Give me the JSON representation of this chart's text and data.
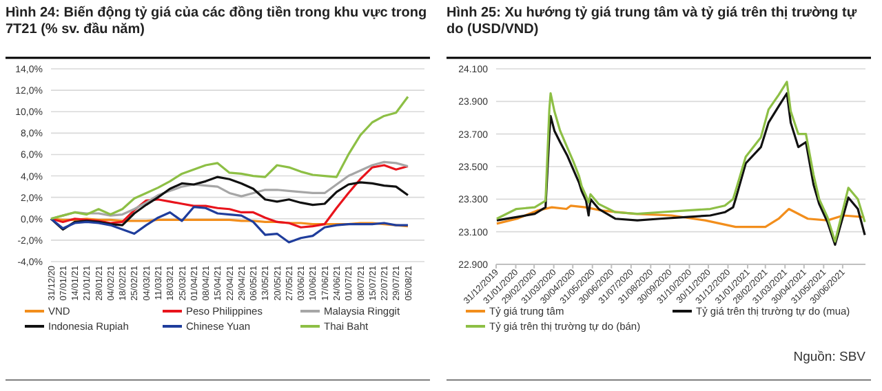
{
  "chart_data": [
    {
      "type": "line",
      "title": "Hình 24: Biến động tỷ giá của các đồng tiền trong khu vực trong 7T21 (% sv. đầu năm)",
      "categories": [
        "31/12/20",
        "07/01/21",
        "14/01/21",
        "21/01/21",
        "28/01/21",
        "04/02/21",
        "18/02/21",
        "25/02/21",
        "04/03/21",
        "11/03/21",
        "18/03/21",
        "25/03/21",
        "01/04/21",
        "08/04/21",
        "15/04/21",
        "22/04/21",
        "29/04/21",
        "06/05/21",
        "13/05/21",
        "20/05/21",
        "27/05/21",
        "03/06/21",
        "10/06/21",
        "17/06/21",
        "24/06/21",
        "01/07/21",
        "08/07/21",
        "15/07/21",
        "22/07/21",
        "29/07/21",
        "05/08/21"
      ],
      "series": [
        {
          "name": "VND",
          "color": "#f28e1c",
          "values": [
            0,
            -0.1,
            -0.1,
            0,
            -0.1,
            -0.1,
            -0.2,
            -0.2,
            -0.2,
            -0.1,
            -0.1,
            -0.1,
            -0.1,
            -0.1,
            -0.1,
            -0.1,
            -0.2,
            -0.2,
            -0.3,
            -0.3,
            -0.4,
            -0.4,
            -0.5,
            -0.5,
            -0.5,
            -0.5,
            -0.4,
            -0.4,
            -0.5,
            -0.6,
            -0.7
          ]
        },
        {
          "name": "Peso Philippines",
          "color": "#e8141c",
          "values": [
            0,
            -0.3,
            0,
            -0.1,
            -0.2,
            -0.4,
            -0.3,
            0.8,
            1.7,
            1.8,
            1.6,
            1.4,
            1.2,
            1.2,
            1.0,
            0.9,
            0.6,
            0.6,
            0.1,
            -0.3,
            -0.4,
            -0.8,
            -0.7,
            -0.5,
            1.0,
            2.4,
            3.7,
            4.8,
            5.0,
            4.6,
            4.9
          ]
        },
        {
          "name": "Malaysia Ringgit",
          "color": "#a6a6a6",
          "values": [
            0,
            0.3,
            0.6,
            0.5,
            0.5,
            0.3,
            0.4,
            0.9,
            1.5,
            2.2,
            2.6,
            3.0,
            3.2,
            3.1,
            3.0,
            2.4,
            2.1,
            2.4,
            2.7,
            2.7,
            2.6,
            2.5,
            2.4,
            2.4,
            3.2,
            4.0,
            4.5,
            5.0,
            5.3,
            5.2,
            4.9
          ]
        },
        {
          "name": "Indonesia Rupiah",
          "color": "#111111",
          "values": [
            0,
            -1.0,
            -0.3,
            -0.2,
            -0.3,
            -0.5,
            -0.6,
            0.5,
            1.3,
            2.0,
            2.8,
            3.3,
            3.2,
            3.5,
            3.9,
            3.7,
            3.3,
            2.8,
            1.8,
            1.6,
            1.8,
            1.5,
            1.3,
            1.4,
            2.5,
            3.2,
            3.4,
            3.3,
            3.1,
            3.0,
            2.2
          ]
        },
        {
          "name": "Chinese Yuan",
          "color": "#1f3d9c",
          "values": [
            0,
            -0.9,
            -0.4,
            -0.3,
            -0.4,
            -0.6,
            -1.0,
            -1.4,
            -0.6,
            0.1,
            0.6,
            -0.2,
            1.1,
            1.0,
            0.5,
            0.4,
            0.3,
            -0.3,
            -1.5,
            -1.4,
            -2.2,
            -1.8,
            -1.6,
            -0.8,
            -0.6,
            -0.5,
            -0.5,
            -0.5,
            -0.4,
            -0.6,
            -0.6
          ]
        },
        {
          "name": "Thai Baht",
          "color": "#8dbf45",
          "values": [
            0,
            0.3,
            0.6,
            0.4,
            0.9,
            0.4,
            0.9,
            1.9,
            2.4,
            2.9,
            3.5,
            4.2,
            4.6,
            5.0,
            5.2,
            4.3,
            4.2,
            4.0,
            3.9,
            5.0,
            4.8,
            4.4,
            4.1,
            4.0,
            3.9,
            6.0,
            7.8,
            9.0,
            9.6,
            9.9,
            11.4
          ]
        }
      ],
      "ylim": [
        -4,
        14
      ],
      "yticks": [
        {
          "value": -4,
          "label": "-4,0%"
        },
        {
          "value": -2,
          "label": "-2,0%"
        },
        {
          "value": 0,
          "label": "0,0%"
        },
        {
          "value": 2,
          "label": "2,0%"
        },
        {
          "value": 4,
          "label": "4,0%"
        },
        {
          "value": 6,
          "label": "6,0%"
        },
        {
          "value": 8,
          "label": "8,0%"
        },
        {
          "value": 10,
          "label": "10,0%"
        },
        {
          "value": 12,
          "label": "12,0%"
        },
        {
          "value": 14,
          "label": "14,0%"
        }
      ],
      "grid": "y",
      "legend": "bottom"
    },
    {
      "type": "line",
      "title": "Hình 25: Xu hướng tỷ giá trung tâm và tỷ giá trên thị trường tự do (USD/VND)",
      "series": [
        {
          "name": "Tỷ giá trung tâm",
          "color": "#f28e1c",
          "x": [
            "2020-01-01",
            "2020-02-02",
            "2020-03-05",
            "2020-03-28",
            "2020-04-20",
            "2020-04-27",
            "2020-05-20",
            "2020-06-15",
            "2020-08-06",
            "2020-10-03",
            "2020-11-25",
            "2021-01-12",
            "2021-02-28",
            "2021-03-21",
            "2021-04-06",
            "2021-05-06",
            "2021-06-06",
            "2021-07-01",
            "2021-08-03"
          ],
          "values": [
            23150,
            23180,
            23230,
            23250,
            23240,
            23260,
            23250,
            23230,
            23210,
            23200,
            23170,
            23130,
            23130,
            23180,
            23240,
            23180,
            23170,
            23200,
            23190
          ]
        },
        {
          "name": "Tỷ giá trên thị trường tự do (mua)",
          "color": "#111111",
          "x": [
            "2020-01-01",
            "2020-02-01",
            "2020-03-01",
            "2020-03-18",
            "2020-03-24",
            "2020-03-26",
            "2020-04-01",
            "2020-04-10",
            "2020-04-21",
            "2020-05-01",
            "2020-05-10",
            "2020-05-14",
            "2020-05-21",
            "2020-05-25",
            "2020-05-28",
            "2020-06-10",
            "2020-07-06",
            "2020-08-10",
            "2020-09-15",
            "2020-10-25",
            "2020-12-03",
            "2020-12-26",
            "2021-01-08",
            "2021-01-12",
            "2021-01-28",
            "2021-02-21",
            "2021-03-05",
            "2021-03-21",
            "2021-04-03",
            "2021-04-09",
            "2021-04-21",
            "2021-05-03",
            "2021-05-15",
            "2021-05-24",
            "2021-06-06",
            "2021-06-18",
            "2021-07-09",
            "2021-07-24",
            "2021-08-04"
          ],
          "values": [
            23170,
            23190,
            23210,
            23250,
            23700,
            23810,
            23720,
            23650,
            23570,
            23480,
            23400,
            23350,
            23290,
            23200,
            23300,
            23240,
            23180,
            23170,
            23180,
            23190,
            23200,
            23220,
            23250,
            23300,
            23520,
            23620,
            23770,
            23870,
            23950,
            23770,
            23620,
            23650,
            23390,
            23270,
            23160,
            23020,
            23310,
            23240,
            23080
          ]
        },
        {
          "name": "Tỷ giá trên thị trường tự do (bán)",
          "color": "#8dbf45",
          "x": [
            "2020-01-01",
            "2020-02-01",
            "2020-03-01",
            "2020-03-18",
            "2020-03-24",
            "2020-03-26",
            "2020-04-01",
            "2020-04-10",
            "2020-04-21",
            "2020-05-01",
            "2020-05-10",
            "2020-05-14",
            "2020-05-21",
            "2020-05-25",
            "2020-05-28",
            "2020-06-10",
            "2020-07-06",
            "2020-08-10",
            "2020-09-15",
            "2020-10-25",
            "2020-12-03",
            "2020-12-26",
            "2021-01-08",
            "2021-01-12",
            "2021-01-28",
            "2021-02-21",
            "2021-03-05",
            "2021-03-21",
            "2021-04-03",
            "2021-04-09",
            "2021-04-21",
            "2021-05-03",
            "2021-05-15",
            "2021-05-24",
            "2021-06-06",
            "2021-06-18",
            "2021-07-09",
            "2021-07-24",
            "2021-08-04"
          ],
          "values": [
            23180,
            23240,
            23250,
            23290,
            23850,
            23950,
            23840,
            23720,
            23620,
            23530,
            23440,
            23380,
            23320,
            23280,
            23330,
            23270,
            23220,
            23210,
            23220,
            23230,
            23240,
            23260,
            23300,
            23350,
            23560,
            23680,
            23850,
            23940,
            24020,
            23840,
            23700,
            23700,
            23450,
            23300,
            23190,
            23040,
            23370,
            23300,
            23160
          ]
        }
      ],
      "xlim": [
        "2019-12-31",
        "2021-08-05"
      ],
      "xticks": [
        {
          "value": "2019-12-31",
          "label": "31/12/2019"
        },
        {
          "value": "2020-01-31",
          "label": "31/01/2020"
        },
        {
          "value": "2020-02-29",
          "label": "29/02/2020"
        },
        {
          "value": "2020-03-31",
          "label": "31/03/2020"
        },
        {
          "value": "2020-04-30",
          "label": "30/04/2020"
        },
        {
          "value": "2020-05-31",
          "label": "31/05/2020"
        },
        {
          "value": "2020-06-30",
          "label": "30/06/2020"
        },
        {
          "value": "2020-07-31",
          "label": "31/07/2020"
        },
        {
          "value": "2020-08-31",
          "label": "31/08/2020"
        },
        {
          "value": "2020-09-30",
          "label": "30/09/2020"
        },
        {
          "value": "2020-10-31",
          "label": "31/10/2020"
        },
        {
          "value": "2020-11-30",
          "label": "30/11/2020"
        },
        {
          "value": "2020-12-31",
          "label": "31/12/2020"
        },
        {
          "value": "2021-01-31",
          "label": "31/01/2021"
        },
        {
          "value": "2021-02-28",
          "label": "28/02/2021"
        },
        {
          "value": "2021-03-31",
          "label": "31/03/2021"
        },
        {
          "value": "2021-04-30",
          "label": "30/04/2021"
        },
        {
          "value": "2021-05-31",
          "label": "31/05/2021"
        },
        {
          "value": "2021-06-30",
          "label": "30/06/2021"
        }
      ],
      "ylim": [
        22900,
        24100
      ],
      "yticks": [
        {
          "value": 22900,
          "label": "22.900"
        },
        {
          "value": 23100,
          "label": "23.100"
        },
        {
          "value": 23300,
          "label": "23.300"
        },
        {
          "value": 23500,
          "label": "23.500"
        },
        {
          "value": 23700,
          "label": "23.700"
        },
        {
          "value": 23900,
          "label": "23.900"
        },
        {
          "value": 24100,
          "label": "24.100"
        }
      ],
      "grid": "y",
      "legend": "bottom",
      "annotations": [
        "Nguồn: SBV"
      ]
    }
  ]
}
